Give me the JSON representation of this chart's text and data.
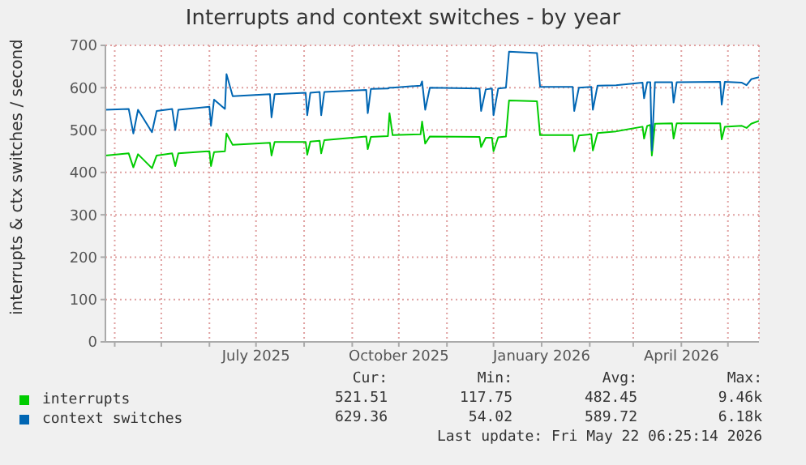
{
  "chart_data": {
    "type": "line",
    "title": "Interrupts and context switches - by year",
    "ylabel": "interrupts & ctx switches / second",
    "x": [
      "2025-03-26",
      "2025-04-10",
      "2025-04-13",
      "2025-04-16",
      "2025-04-25",
      "2025-04-28",
      "2025-05-08",
      "2025-05-10",
      "2025-05-12",
      "2025-06-01",
      "2025-06-02",
      "2025-06-04",
      "2025-06-11",
      "2025-06-12",
      "2025-06-16",
      "2025-07-10",
      "2025-07-11",
      "2025-07-13",
      "2025-08-02",
      "2025-08-03",
      "2025-08-05",
      "2025-08-11",
      "2025-08-12",
      "2025-08-14",
      "2025-09-10",
      "2025-09-11",
      "2025-09-13",
      "2025-09-24",
      "2025-09-25",
      "2025-09-27",
      "2025-10-15",
      "2025-10-16",
      "2025-10-18",
      "2025-10-21",
      "2025-11-22",
      "2025-11-23",
      "2025-11-26",
      "2025-11-30",
      "2025-12-01",
      "2025-12-04",
      "2025-12-09",
      "2025-12-11",
      "2025-12-29",
      "2025-12-31",
      "2026-01-21",
      "2026-01-22",
      "2026-01-25",
      "2026-02-02",
      "2026-02-03",
      "2026-02-06",
      "2026-02-18",
      "2026-03-07",
      "2026-03-08",
      "2026-03-10",
      "2026-03-12",
      "2026-03-13",
      "2026-03-15",
      "2026-03-26",
      "2026-03-27",
      "2026-03-29",
      "2026-04-26",
      "2026-04-27",
      "2026-04-29",
      "2026-05-10",
      "2026-05-13",
      "2026-05-16",
      "2026-05-21"
    ],
    "series": [
      {
        "name": "interrupts",
        "color": "#00cc00",
        "values": [
          440,
          445,
          412,
          443,
          410,
          440,
          445,
          415,
          445,
          450,
          415,
          448,
          450,
          492,
          465,
          470,
          440,
          472,
          472,
          442,
          473,
          475,
          445,
          476,
          485,
          455,
          484,
          486,
          540,
          488,
          490,
          520,
          468,
          485,
          484,
          460,
          482,
          482,
          450,
          483,
          485,
          570,
          568,
          488,
          488,
          450,
          487,
          490,
          452,
          493,
          497,
          508,
          480,
          510,
          512,
          440,
          515,
          516,
          480,
          516,
          516,
          478,
          508,
          510,
          505,
          515,
          522
        ]
      },
      {
        "name": "context switches",
        "color": "#0066b3",
        "values": [
          548,
          550,
          492,
          548,
          495,
          545,
          550,
          500,
          548,
          555,
          510,
          572,
          550,
          632,
          580,
          585,
          530,
          585,
          588,
          535,
          588,
          590,
          535,
          590,
          595,
          540,
          597,
          598,
          600,
          600,
          605,
          615,
          548,
          600,
          598,
          545,
          596,
          598,
          535,
          598,
          600,
          685,
          682,
          602,
          602,
          545,
          600,
          602,
          548,
          605,
          606,
          612,
          575,
          613,
          613,
          452,
          613,
          613,
          565,
          613,
          614,
          560,
          614,
          612,
          606,
          620,
          625
        ]
      }
    ],
    "xlim": [
      "2025-03-26",
      "2026-05-21"
    ],
    "xticks": [
      {
        "value": "2025-04-01",
        "label": null
      },
      {
        "value": "2025-05-01",
        "label": null
      },
      {
        "value": "2025-06-01",
        "label": null
      },
      {
        "value": "2025-07-01",
        "label": "July 2025"
      },
      {
        "value": "2025-08-01",
        "label": null
      },
      {
        "value": "2025-09-01",
        "label": null
      },
      {
        "value": "2025-10-01",
        "label": "October 2025"
      },
      {
        "value": "2025-11-01",
        "label": null
      },
      {
        "value": "2025-12-01",
        "label": null
      },
      {
        "value": "2026-01-01",
        "label": "January 2026"
      },
      {
        "value": "2026-02-01",
        "label": null
      },
      {
        "value": "2026-03-01",
        "label": null
      },
      {
        "value": "2026-04-01",
        "label": "April 2026"
      },
      {
        "value": "2026-05-01",
        "label": null
      }
    ],
    "ylim": [
      0,
      700
    ],
    "yticks": [
      0,
      100,
      200,
      300,
      400,
      500,
      600,
      700
    ],
    "grid": true,
    "legend": "bottom",
    "annotations": [
      "Cur:",
      "Min:",
      "Avg:",
      "Max:",
      "521.51",
      "117.75",
      "482.45",
      "9.46k",
      "629.36",
      "54.02",
      "589.72",
      "6.18k",
      "Last update: Fri May 22 06:25:14 2026"
    ]
  }
}
